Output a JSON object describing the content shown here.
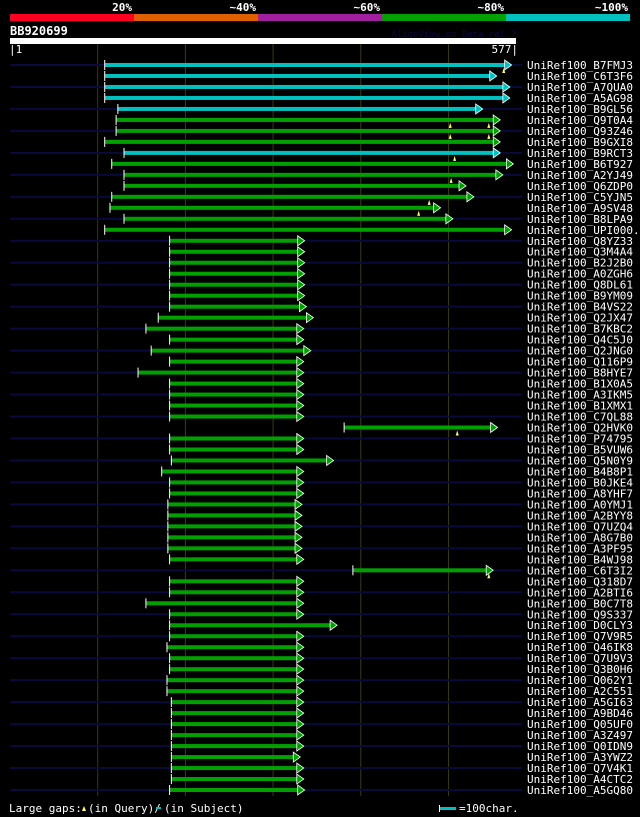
{
  "score_legend": {
    "labels": [
      "20%",
      "~40%",
      "~60%",
      "~80%",
      "~100%"
    ],
    "colors": [
      "#ff0020",
      "#e06000",
      "#a020a0",
      "#00a000",
      "#00c0c0"
    ]
  },
  "query": {
    "name": "BB920699",
    "start_label": "|1",
    "end_label": "577|",
    "length": 577,
    "watermark": "AlignView.pm Beta rel.7"
  },
  "grid_positions": [
    100,
    200,
    300,
    400,
    500
  ],
  "hits": [
    {
      "label": "UniRef100_B7FMJ3",
      "start": 108,
      "end": 572,
      "color": "#00c0c0",
      "query_gaps": [
        563
      ]
    },
    {
      "label": "UniRef100_C6T3F6",
      "start": 108,
      "end": 555,
      "color": "#00c0c0",
      "query_gaps": []
    },
    {
      "label": "UniRef100_A7QUA0",
      "start": 108,
      "end": 570,
      "color": "#00c0c0",
      "query_gaps": []
    },
    {
      "label": "UniRef100_A5AG98",
      "start": 108,
      "end": 570,
      "color": "#00c0c0",
      "query_gaps": []
    },
    {
      "label": "UniRef100_B9GL56",
      "start": 123,
      "end": 539,
      "color": "#00c0c0",
      "query_gaps": []
    },
    {
      "label": "UniRef100_Q9T0A4",
      "start": 121,
      "end": 559,
      "color": "#00a000",
      "query_gaps": [
        502,
        546
      ]
    },
    {
      "label": "UniRef100_Q93Z46",
      "start": 121,
      "end": 559,
      "color": "#00a000",
      "query_gaps": [
        502,
        546
      ]
    },
    {
      "label": "UniRef100_B9GXI8",
      "start": 108,
      "end": 559,
      "color": "#00a000",
      "query_gaps": []
    },
    {
      "label": "UniRef100_B9RCT3",
      "start": 130,
      "end": 559,
      "color": "#00c0c0",
      "query_gaps": [
        507
      ]
    },
    {
      "label": "UniRef100_B6T927",
      "start": 116,
      "end": 574,
      "color": "#00a000",
      "query_gaps": []
    },
    {
      "label": "UniRef100_A2YJ49",
      "start": 130,
      "end": 562,
      "color": "#00a000",
      "query_gaps": [
        503
      ]
    },
    {
      "label": "UniRef100_Q6ZDP0",
      "start": 130,
      "end": 520,
      "color": "#00a000",
      "query_gaps": []
    },
    {
      "label": "UniRef100_C5YJN5",
      "start": 116,
      "end": 529,
      "color": "#00a000",
      "query_gaps": [
        478
      ]
    },
    {
      "label": "UniRef100_A9SV48",
      "start": 114,
      "end": 491,
      "color": "#00a000",
      "query_gaps": [
        466
      ]
    },
    {
      "label": "UniRef100_B8LPA9",
      "start": 130,
      "end": 505,
      "color": "#00a000",
      "query_gaps": []
    },
    {
      "label": "UniRef100_UPI000..",
      "start": 108,
      "end": 572,
      "color": "#00a000",
      "query_gaps": []
    },
    {
      "label": "UniRef100_Q8YZ33",
      "start": 182,
      "end": 336,
      "color": "#00a000",
      "query_gaps": []
    },
    {
      "label": "UniRef100_Q3M4A4",
      "start": 182,
      "end": 336,
      "color": "#00a000",
      "query_gaps": []
    },
    {
      "label": "UniRef100_B2J2B0",
      "start": 182,
      "end": 336,
      "color": "#00a000",
      "query_gaps": []
    },
    {
      "label": "UniRef100_A0ZGH6",
      "start": 182,
      "end": 336,
      "color": "#00a000",
      "query_gaps": []
    },
    {
      "label": "UniRef100_Q8DL61",
      "start": 182,
      "end": 336,
      "color": "#00a000",
      "query_gaps": []
    },
    {
      "label": "UniRef100_B9YM09",
      "start": 182,
      "end": 336,
      "color": "#00a000",
      "query_gaps": []
    },
    {
      "label": "UniRef100_B4VS22",
      "start": 182,
      "end": 338,
      "color": "#00a000",
      "query_gaps": []
    },
    {
      "label": "UniRef100_Q2JX47",
      "start": 169,
      "end": 346,
      "color": "#00a000",
      "query_gaps": []
    },
    {
      "label": "UniRef100_B7KBC2",
      "start": 155,
      "end": 335,
      "color": "#00a000",
      "query_gaps": []
    },
    {
      "label": "UniRef100_Q4C5J0",
      "start": 182,
      "end": 335,
      "color": "#00a000",
      "query_gaps": []
    },
    {
      "label": "UniRef100_Q2JNG0",
      "start": 161,
      "end": 343,
      "color": "#00a000",
      "query_gaps": []
    },
    {
      "label": "UniRef100_Q116P9",
      "start": 182,
      "end": 335,
      "color": "#00a000",
      "query_gaps": []
    },
    {
      "label": "UniRef100_B8HYE7",
      "start": 146,
      "end": 335,
      "color": "#00a000",
      "query_gaps": []
    },
    {
      "label": "UniRef100_B1X0A5",
      "start": 182,
      "end": 335,
      "color": "#00a000",
      "query_gaps": []
    },
    {
      "label": "UniRef100_A3IKM5",
      "start": 182,
      "end": 335,
      "color": "#00a000",
      "query_gaps": []
    },
    {
      "label": "UniRef100_B1XMX1",
      "start": 182,
      "end": 335,
      "color": "#00a000",
      "query_gaps": []
    },
    {
      "label": "UniRef100_C7QL88",
      "start": 182,
      "end": 335,
      "color": "#00a000",
      "query_gaps": []
    },
    {
      "label": "UniRef100_Q2HVK0",
      "start": 381,
      "end": 556,
      "color": "#00a000",
      "query_gaps": [
        510
      ]
    },
    {
      "label": "UniRef100_P74795",
      "start": 182,
      "end": 335,
      "color": "#00a000",
      "query_gaps": []
    },
    {
      "label": "UniRef100_B5VUW6",
      "start": 182,
      "end": 335,
      "color": "#00a000",
      "query_gaps": []
    },
    {
      "label": "UniRef100_Q5N0Y9",
      "start": 184,
      "end": 369,
      "color": "#00a000",
      "query_gaps": []
    },
    {
      "label": "UniRef100_B4B8P1",
      "start": 173,
      "end": 335,
      "color": "#00a000",
      "query_gaps": []
    },
    {
      "label": "UniRef100_B0JKE4",
      "start": 182,
      "end": 335,
      "color": "#00a000",
      "query_gaps": []
    },
    {
      "label": "UniRef100_A8YHF7",
      "start": 182,
      "end": 335,
      "color": "#00a000",
      "query_gaps": []
    },
    {
      "label": "UniRef100_A0YMJ1",
      "start": 180,
      "end": 333,
      "color": "#00a000",
      "query_gaps": []
    },
    {
      "label": "UniRef100_A2BYY8",
      "start": 180,
      "end": 333,
      "color": "#00a000",
      "query_gaps": []
    },
    {
      "label": "UniRef100_Q7UZQ4",
      "start": 180,
      "end": 333,
      "color": "#00a000",
      "query_gaps": []
    },
    {
      "label": "UniRef100_A8G7B0",
      "start": 180,
      "end": 333,
      "color": "#00a000",
      "query_gaps": []
    },
    {
      "label": "UniRef100_A3PF95",
      "start": 180,
      "end": 333,
      "color": "#00a000",
      "query_gaps": []
    },
    {
      "label": "UniRef100_B4WJ98",
      "start": 182,
      "end": 335,
      "color": "#00a000",
      "query_gaps": []
    },
    {
      "label": "UniRef100_C6T3I2",
      "start": 391,
      "end": 551,
      "color": "#00a000",
      "query_gaps": [
        546
      ]
    },
    {
      "label": "UniRef100_Q318D7",
      "start": 182,
      "end": 335,
      "color": "#00a000",
      "query_gaps": []
    },
    {
      "label": "UniRef100_A2BTI6",
      "start": 182,
      "end": 335,
      "color": "#00a000",
      "query_gaps": []
    },
    {
      "label": "UniRef100_B0C7T8",
      "start": 155,
      "end": 335,
      "color": "#00a000",
      "query_gaps": []
    },
    {
      "label": "UniRef100_Q9S337",
      "start": 182,
      "end": 335,
      "color": "#00a000",
      "query_gaps": []
    },
    {
      "label": "UniRef100_D0CLY3",
      "start": 182,
      "end": 373,
      "color": "#00a000",
      "query_gaps": []
    },
    {
      "label": "UniRef100_Q7V9R5",
      "start": 182,
      "end": 335,
      "color": "#00a000",
      "query_gaps": []
    },
    {
      "label": "UniRef100_Q46IK8",
      "start": 179,
      "end": 335,
      "color": "#00a000",
      "query_gaps": []
    },
    {
      "label": "UniRef100_Q7U9V3",
      "start": 182,
      "end": 335,
      "color": "#00a000",
      "query_gaps": []
    },
    {
      "label": "UniRef100_Q3B0H6",
      "start": 182,
      "end": 335,
      "color": "#00a000",
      "query_gaps": []
    },
    {
      "label": "UniRef100_Q062Y1",
      "start": 179,
      "end": 335,
      "color": "#00a000",
      "query_gaps": []
    },
    {
      "label": "UniRef100_A2C551",
      "start": 179,
      "end": 335,
      "color": "#00a000",
      "query_gaps": []
    },
    {
      "label": "UniRef100_A5GI63",
      "start": 184,
      "end": 335,
      "color": "#00a000",
      "query_gaps": []
    },
    {
      "label": "UniRef100_A9BD46",
      "start": 184,
      "end": 335,
      "color": "#00a000",
      "query_gaps": []
    },
    {
      "label": "UniRef100_Q05UF0",
      "start": 184,
      "end": 335,
      "color": "#00a000",
      "query_gaps": []
    },
    {
      "label": "UniRef100_A3Z497",
      "start": 184,
      "end": 335,
      "color": "#00a000",
      "query_gaps": []
    },
    {
      "label": "UniRef100_Q0IDN9",
      "start": 184,
      "end": 335,
      "color": "#00a000",
      "query_gaps": []
    },
    {
      "label": "UniRef100_A3YWZ2",
      "start": 184,
      "end": 331,
      "color": "#00a000",
      "query_gaps": []
    },
    {
      "label": "UniRef100_Q7V4K1",
      "start": 184,
      "end": 335,
      "color": "#00a000",
      "query_gaps": []
    },
    {
      "label": "UniRef100_A4CTC2",
      "start": 184,
      "end": 335,
      "color": "#00a000",
      "query_gaps": []
    },
    {
      "label": "UniRef100_A5GQ80",
      "start": 182,
      "end": 336,
      "color": "#00a000",
      "query_gaps": []
    }
  ],
  "footer": {
    "gaps_label": "Large gaps:",
    "in_query": "(in Query)/",
    "in_subject": "(in Subject)",
    "scale_label": "=100char."
  }
}
